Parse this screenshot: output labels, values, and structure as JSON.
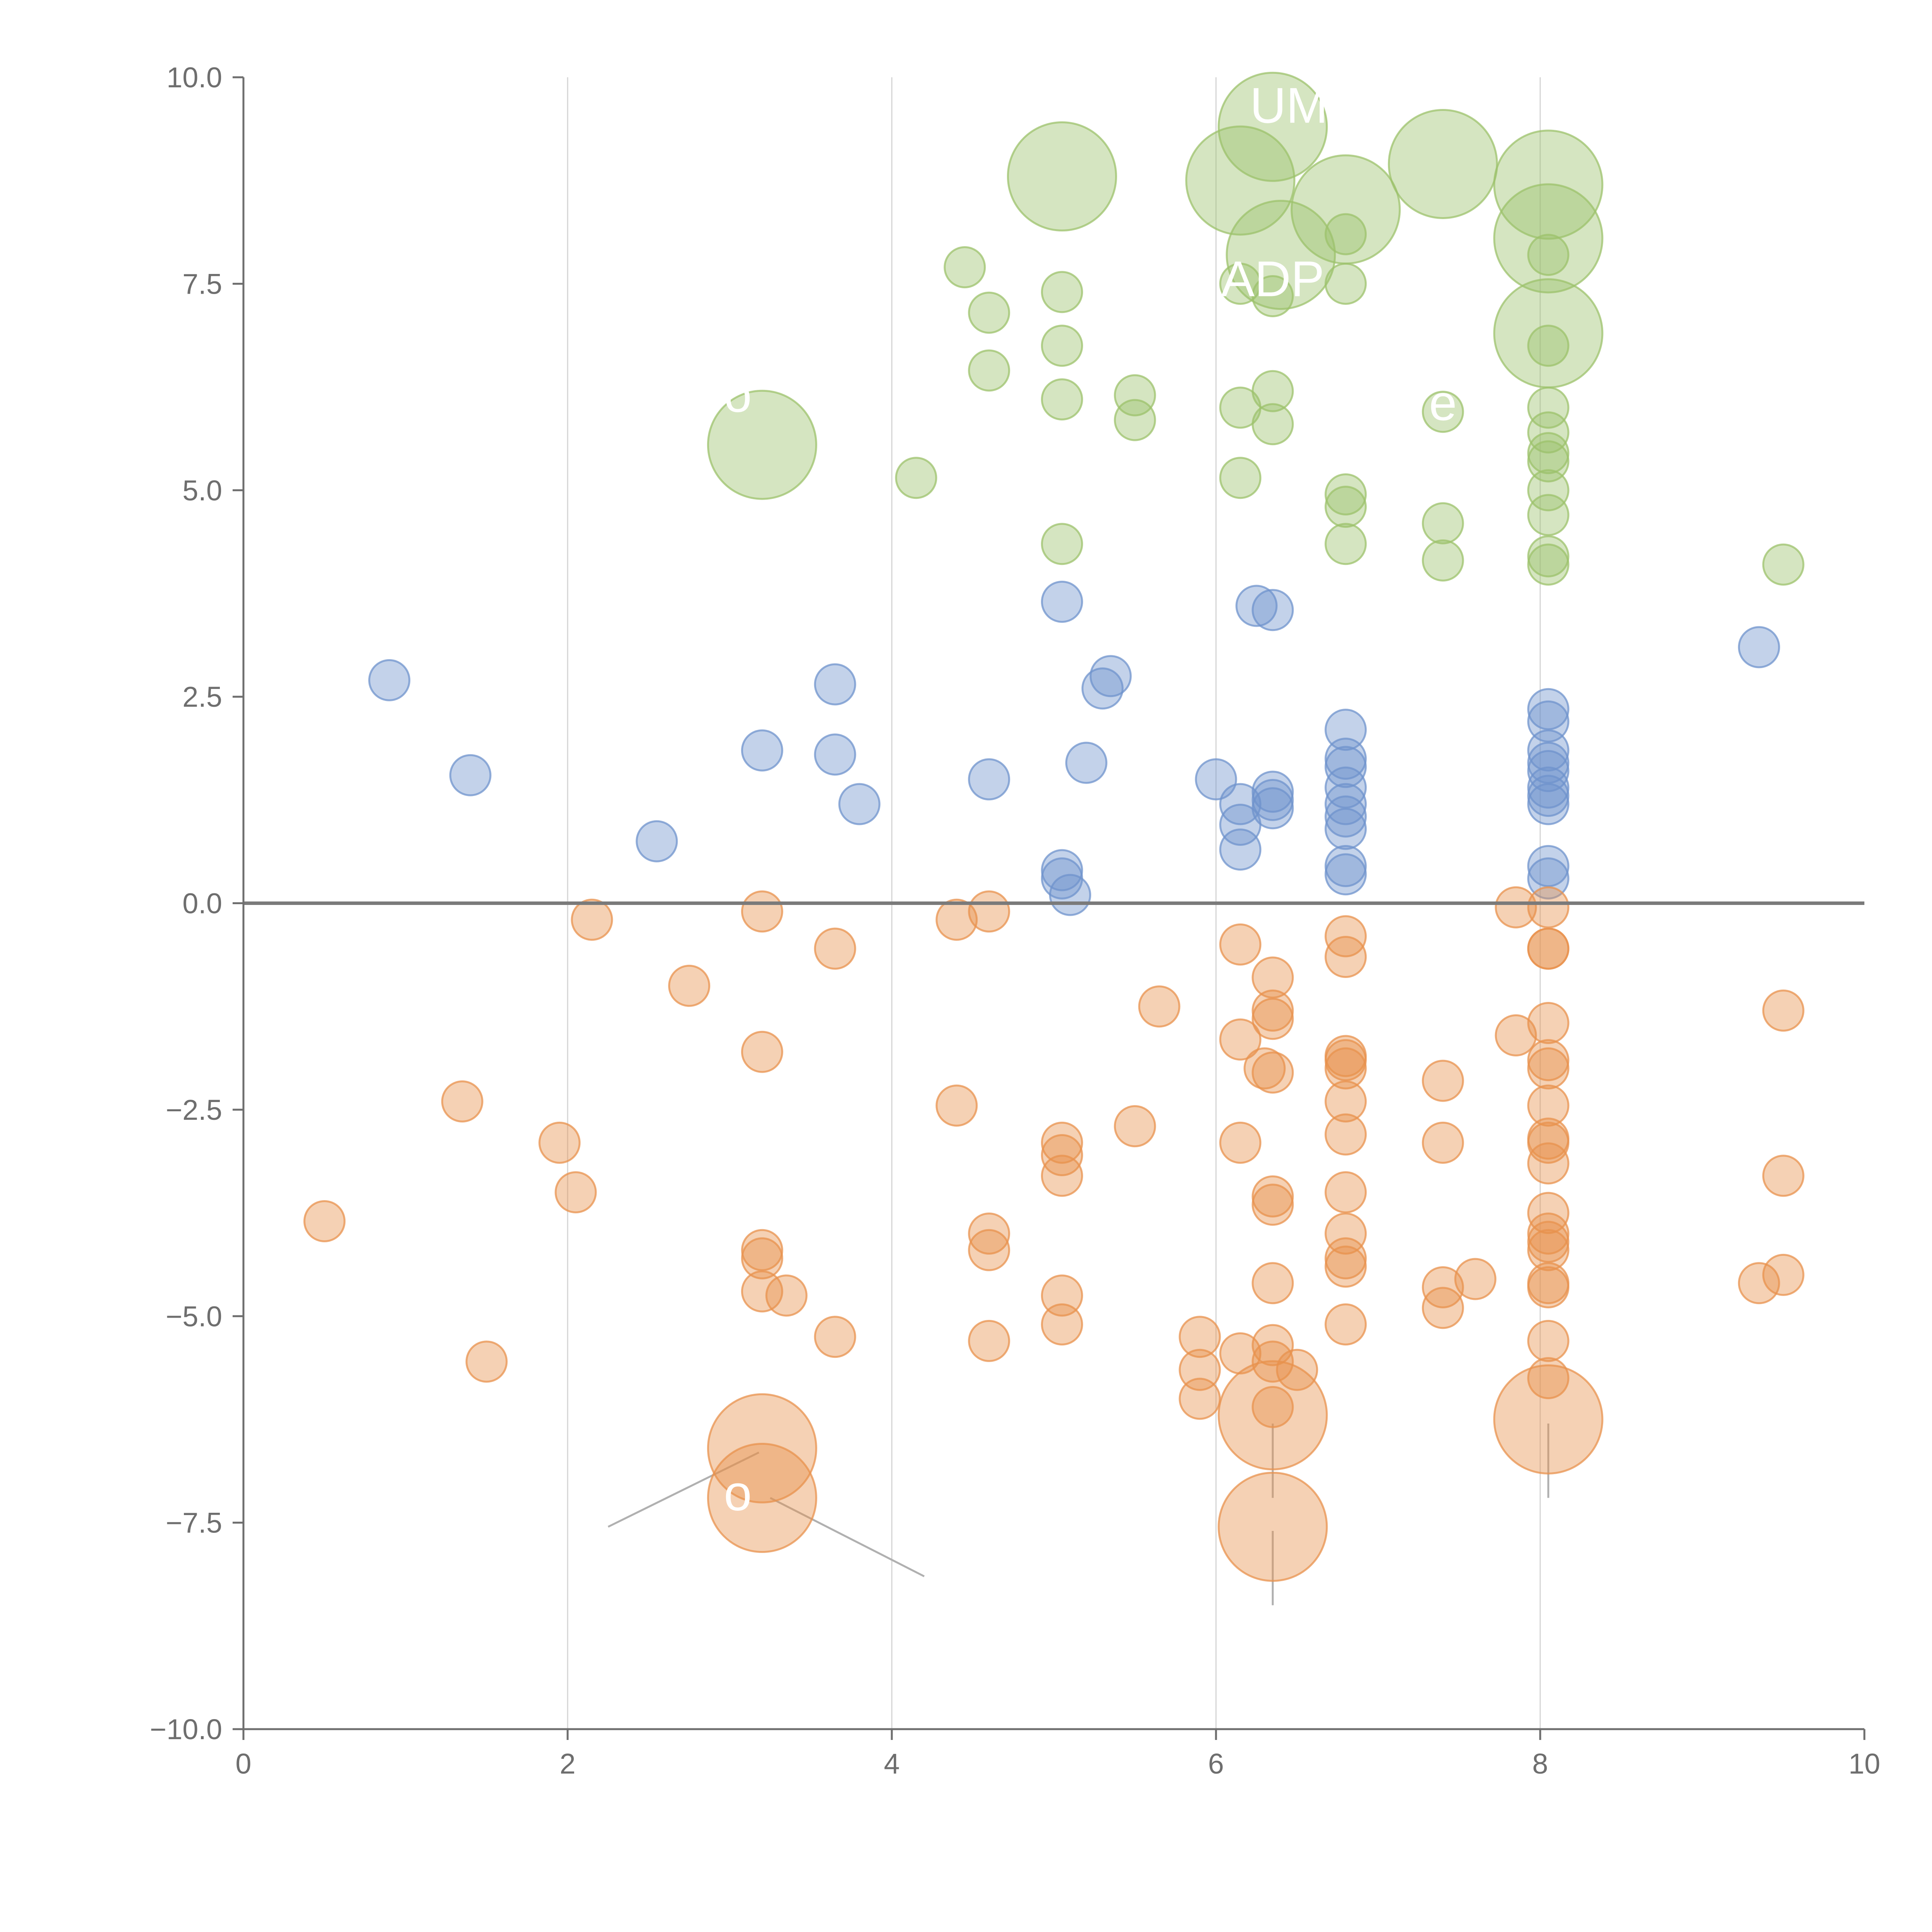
{
  "chart_data": {
    "type": "scatter",
    "title": "",
    "xlabel": "",
    "ylabel": "",
    "xlim": [
      0,
      10
    ],
    "ylim": [
      -10,
      10
    ],
    "x_ticks": [
      0,
      2,
      4,
      6,
      8,
      10
    ],
    "y_ticks": [
      -10,
      -7.5,
      -5,
      -2.5,
      0,
      2.5,
      5,
      7.5,
      10
    ],
    "x_tick_labels": [
      "0",
      "2",
      "4",
      "6",
      "8",
      "10"
    ],
    "y_tick_labels": [
      "−10.0",
      "−7.5",
      "−5.0",
      "−2.5",
      "0.0",
      "2.5",
      "5.0",
      "7.5",
      "10.0"
    ],
    "grid": "vertical",
    "zero_line": true,
    "colors": {
      "green": "#9cc26b",
      "blue": "#6f93cc",
      "orange": "#e8924d",
      "axis": "#6e6e6e",
      "grid": "#d4d4d4"
    },
    "series": [
      {
        "name": "green",
        "color": "#9cc26b",
        "points": [
          [
            6.35,
            9.4,
            2
          ],
          [
            5.05,
            8.8,
            2
          ],
          [
            6.15,
            8.75,
            2
          ],
          [
            6.8,
            8.4,
            2
          ],
          [
            7.4,
            8.95,
            2
          ],
          [
            8.05,
            8.7,
            2
          ],
          [
            8.05,
            8.05,
            2
          ],
          [
            6.4,
            7.85,
            2
          ],
          [
            8.05,
            6.9,
            2
          ],
          [
            3.2,
            5.55,
            2
          ],
          [
            6.8,
            8.1,
            1
          ],
          [
            8.05,
            7.85,
            1
          ],
          [
            6.8,
            7.5,
            1
          ],
          [
            6.15,
            7.5,
            1
          ],
          [
            6.35,
            7.35,
            1
          ],
          [
            4.45,
            7.7,
            1
          ],
          [
            4.6,
            7.15,
            1
          ],
          [
            5.05,
            7.4,
            1
          ],
          [
            5.05,
            6.75,
            1
          ],
          [
            4.6,
            6.45,
            1
          ],
          [
            5.05,
            6.1,
            1
          ],
          [
            5.5,
            6.15,
            1
          ],
          [
            5.5,
            5.85,
            1
          ],
          [
            6.15,
            6.0,
            1
          ],
          [
            6.35,
            6.2,
            1
          ],
          [
            6.35,
            5.8,
            1
          ],
          [
            7.4,
            5.95,
            1
          ],
          [
            8.05,
            6.75,
            1
          ],
          [
            8.05,
            6.0,
            1
          ],
          [
            8.05,
            5.7,
            1
          ],
          [
            8.05,
            5.45,
            1
          ],
          [
            8.05,
            5.35,
            1
          ],
          [
            8.05,
            5.0,
            1
          ],
          [
            8.05,
            4.7,
            1
          ],
          [
            8.05,
            4.2,
            1
          ],
          [
            8.05,
            4.1,
            1
          ],
          [
            6.15,
            5.15,
            1
          ],
          [
            6.8,
            4.95,
            1
          ],
          [
            6.8,
            4.8,
            1
          ],
          [
            6.8,
            4.35,
            1
          ],
          [
            7.4,
            4.6,
            1
          ],
          [
            7.4,
            4.15,
            1
          ],
          [
            4.15,
            5.15,
            1
          ],
          [
            5.05,
            4.35,
            1
          ],
          [
            9.5,
            4.1,
            1
          ]
        ]
      },
      {
        "name": "blue",
        "color": "#6f93cc",
        "points": [
          [
            0.9,
            2.7,
            1
          ],
          [
            1.4,
            1.55,
            1
          ],
          [
            2.55,
            0.75,
            1
          ],
          [
            3.2,
            1.85,
            1
          ],
          [
            3.65,
            2.65,
            1
          ],
          [
            3.65,
            1.8,
            1
          ],
          [
            3.8,
            1.2,
            1
          ],
          [
            4.6,
            1.5,
            1
          ],
          [
            5.05,
            3.65,
            1
          ],
          [
            5.35,
            2.75,
            1
          ],
          [
            5.3,
            2.6,
            1
          ],
          [
            5.2,
            1.7,
            1
          ],
          [
            5.05,
            0.4,
            1
          ],
          [
            5.05,
            0.3,
            1
          ],
          [
            5.1,
            0.1,
            1
          ],
          [
            6.0,
            1.5,
            1
          ],
          [
            6.15,
            1.2,
            1
          ],
          [
            6.15,
            0.95,
            1
          ],
          [
            6.15,
            0.65,
            1
          ],
          [
            6.25,
            3.6,
            1
          ],
          [
            6.35,
            3.55,
            1
          ],
          [
            6.35,
            1.35,
            1
          ],
          [
            6.35,
            1.25,
            1
          ],
          [
            6.35,
            1.15,
            1
          ],
          [
            6.8,
            2.1,
            1
          ],
          [
            6.8,
            1.75,
            1
          ],
          [
            6.8,
            1.65,
            1
          ],
          [
            6.8,
            1.4,
            1
          ],
          [
            6.8,
            1.2,
            1
          ],
          [
            6.8,
            1.05,
            1
          ],
          [
            6.8,
            0.9,
            1
          ],
          [
            6.8,
            0.45,
            1
          ],
          [
            6.8,
            0.35,
            1
          ],
          [
            8.05,
            2.35,
            1
          ],
          [
            8.05,
            2.2,
            1
          ],
          [
            8.05,
            1.85,
            1
          ],
          [
            8.05,
            1.7,
            1
          ],
          [
            8.05,
            1.6,
            1
          ],
          [
            8.05,
            1.4,
            1
          ],
          [
            8.05,
            1.3,
            1
          ],
          [
            8.05,
            1.2,
            1
          ],
          [
            8.05,
            0.45,
            1
          ],
          [
            8.05,
            0.3,
            1
          ],
          [
            9.35,
            3.1,
            1
          ]
        ]
      },
      {
        "name": "orange",
        "color": "#e8924d",
        "points": [
          [
            3.2,
            -6.6,
            2
          ],
          [
            3.2,
            -7.2,
            2
          ],
          [
            6.35,
            -6.2,
            2
          ],
          [
            6.35,
            -7.55,
            2
          ],
          [
            8.05,
            -6.25,
            2
          ],
          [
            0.5,
            -3.85,
            1
          ],
          [
            1.35,
            -2.4,
            1
          ],
          [
            1.5,
            -5.55,
            1
          ],
          [
            1.95,
            -2.9,
            1
          ],
          [
            2.05,
            -3.5,
            1
          ],
          [
            2.15,
            -0.2,
            1
          ],
          [
            2.75,
            -1.0,
            1
          ],
          [
            3.2,
            -0.1,
            1
          ],
          [
            3.2,
            -1.8,
            1
          ],
          [
            3.2,
            -4.2,
            1
          ],
          [
            3.2,
            -4.3,
            1
          ],
          [
            3.2,
            -4.7,
            1
          ],
          [
            3.35,
            -4.75,
            1
          ],
          [
            3.65,
            -0.55,
            1
          ],
          [
            3.65,
            -5.25,
            1
          ],
          [
            4.4,
            -0.2,
            1
          ],
          [
            4.6,
            -0.1,
            1
          ],
          [
            4.4,
            -2.45,
            1
          ],
          [
            4.6,
            -4.0,
            1
          ],
          [
            4.6,
            -4.2,
            1
          ],
          [
            4.6,
            -5.3,
            1
          ],
          [
            5.05,
            -2.9,
            1
          ],
          [
            5.05,
            -3.05,
            1
          ],
          [
            5.05,
            -3.3,
            1
          ],
          [
            5.05,
            -4.75,
            1
          ],
          [
            5.05,
            -5.1,
            1
          ],
          [
            5.5,
            -2.7,
            1
          ],
          [
            5.65,
            -1.25,
            1
          ],
          [
            5.9,
            -5.25,
            1
          ],
          [
            5.9,
            -5.65,
            1
          ],
          [
            5.9,
            -6.0,
            1
          ],
          [
            6.15,
            -0.5,
            1
          ],
          [
            6.15,
            -1.65,
            1
          ],
          [
            6.15,
            -2.9,
            1
          ],
          [
            6.15,
            -5.45,
            1
          ],
          [
            6.35,
            -0.9,
            1
          ],
          [
            6.35,
            -1.3,
            1
          ],
          [
            6.35,
            -1.4,
            1
          ],
          [
            6.3,
            -2.0,
            1
          ],
          [
            6.35,
            -2.05,
            1
          ],
          [
            6.35,
            -3.55,
            1
          ],
          [
            6.35,
            -3.65,
            1
          ],
          [
            6.35,
            -4.6,
            1
          ],
          [
            6.35,
            -5.35,
            1
          ],
          [
            6.35,
            -5.55,
            1
          ],
          [
            6.35,
            -6.1,
            1
          ],
          [
            6.5,
            -5.65,
            1
          ],
          [
            6.8,
            -0.4,
            1
          ],
          [
            6.8,
            -0.65,
            1
          ],
          [
            6.8,
            -1.85,
            1
          ],
          [
            6.8,
            -1.9,
            1
          ],
          [
            6.8,
            -2.0,
            1
          ],
          [
            6.8,
            -2.4,
            1
          ],
          [
            6.8,
            -2.8,
            1
          ],
          [
            6.8,
            -3.5,
            1
          ],
          [
            6.8,
            -4.0,
            1
          ],
          [
            6.8,
            -4.3,
            1
          ],
          [
            6.8,
            -4.4,
            1
          ],
          [
            6.8,
            -5.1,
            1
          ],
          [
            7.4,
            -2.15,
            1
          ],
          [
            7.4,
            -2.9,
            1
          ],
          [
            7.4,
            -4.65,
            1
          ],
          [
            7.4,
            -4.9,
            1
          ],
          [
            7.6,
            -4.55,
            1
          ],
          [
            7.85,
            -0.05,
            1
          ],
          [
            7.85,
            -1.6,
            1
          ],
          [
            8.05,
            -0.05,
            1
          ],
          [
            8.05,
            -0.55,
            1
          ],
          [
            8.05,
            -0.55,
            1
          ],
          [
            8.05,
            -1.45,
            1
          ],
          [
            8.05,
            -1.9,
            1
          ],
          [
            8.05,
            -2.0,
            1
          ],
          [
            8.05,
            -2.45,
            1
          ],
          [
            8.05,
            -2.85,
            1
          ],
          [
            8.05,
            -2.9,
            1
          ],
          [
            8.05,
            -3.15,
            1
          ],
          [
            8.05,
            -3.75,
            1
          ],
          [
            8.05,
            -4.0,
            1
          ],
          [
            8.05,
            -4.1,
            1
          ],
          [
            8.05,
            -4.2,
            1
          ],
          [
            8.05,
            -4.6,
            1
          ],
          [
            8.05,
            -4.65,
            1
          ],
          [
            8.05,
            -5.3,
            1
          ],
          [
            8.05,
            -5.75,
            1
          ],
          [
            9.35,
            -4.6,
            1
          ],
          [
            9.5,
            -1.3,
            1
          ],
          [
            9.5,
            -3.3,
            1
          ],
          [
            9.5,
            -4.5,
            1
          ]
        ]
      }
    ],
    "annotations": [
      {
        "text": "UM",
        "x": 6.45,
        "y": 9.45
      },
      {
        "text": "ADP",
        "x": 6.35,
        "y": 7.35
      },
      {
        "text": "o",
        "x": 3.05,
        "y": 5.95
      },
      {
        "text": "e",
        "x": 7.4,
        "y": 5.85
      },
      {
        "text": "o",
        "x": 3.05,
        "y": -7.35
      }
    ]
  }
}
